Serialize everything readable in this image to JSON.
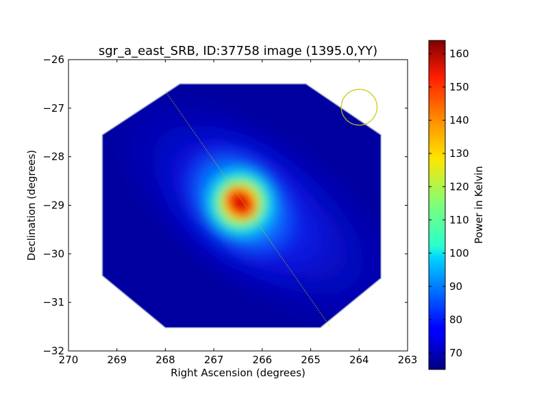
{
  "chart_data": {
    "type": "heatmap",
    "title": "sgr_a_east_SRB, ID:37758 image (1395.0,YY)",
    "xlabel": "Right Ascension (degrees)",
    "ylabel": "Declination (degrees)",
    "xlim": [
      270,
      263
    ],
    "ylim": [
      -32,
      -26
    ],
    "xticks": [
      270,
      269,
      268,
      267,
      266,
      265,
      264,
      263
    ],
    "yticks": [
      -26,
      -27,
      -28,
      -29,
      -30,
      -31,
      -32
    ],
    "xtick_labels": [
      "270",
      "269",
      "268",
      "267",
      "266",
      "265",
      "264",
      "263"
    ],
    "ytick_labels": [
      "−26",
      "−27",
      "−28",
      "−29",
      "−30",
      "−31",
      "−32"
    ],
    "colorbar": {
      "label": "Power in Kelvin",
      "range": [
        65,
        164
      ],
      "ticks": [
        70,
        80,
        90,
        100,
        110,
        120,
        130,
        140,
        150,
        160
      ],
      "tick_labels": [
        "70",
        "80",
        "90",
        "100",
        "110",
        "120",
        "130",
        "140",
        "150",
        "160"
      ],
      "colormap": "jet"
    },
    "footprint_vertices_radec": [
      [
        267.7,
        -26.5
      ],
      [
        265.1,
        -26.5
      ],
      [
        263.55,
        -27.55
      ],
      [
        263.55,
        -30.5
      ],
      [
        264.8,
        -31.52
      ],
      [
        268.0,
        -31.52
      ],
      [
        269.3,
        -30.45
      ],
      [
        269.3,
        -27.55
      ]
    ],
    "peak": {
      "ra": 266.45,
      "dec": -28.95,
      "value": 164
    },
    "annotations": [
      {
        "type": "line",
        "style": "dotted",
        "color": "#c8c800",
        "from": [
          268.0,
          -26.65
        ],
        "to": [
          264.6,
          -31.5
        ]
      },
      {
        "type": "circle",
        "color": "#c8c800",
        "center": [
          264.0,
          -26.98
        ],
        "radius_deg": 0.37
      }
    ]
  }
}
